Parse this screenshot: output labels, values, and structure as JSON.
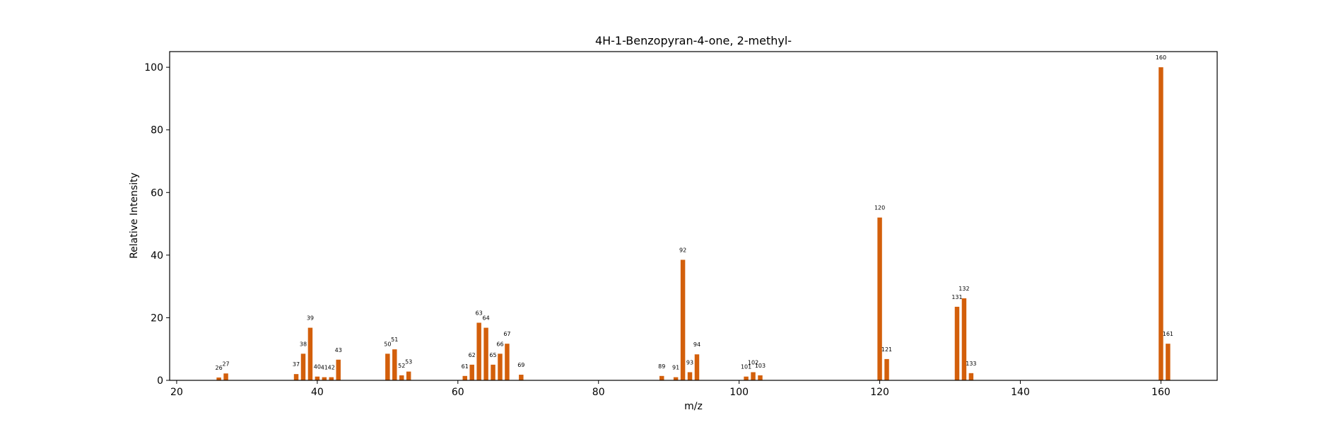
{
  "chart_data": {
    "type": "bar",
    "title": "4H-1-Benzopyran-4-one, 2-methyl-",
    "xlabel": "m/z",
    "ylabel": "Relative Intensity",
    "xlim": [
      19,
      168
    ],
    "ylim": [
      0,
      105
    ],
    "xticks": [
      20,
      40,
      60,
      80,
      100,
      120,
      140,
      160
    ],
    "yticks": [
      0,
      20,
      40,
      60,
      80,
      100
    ],
    "grid": false,
    "bar_color": "#d35f0b",
    "x": [
      26,
      27,
      37,
      38,
      39,
      40,
      41,
      42,
      43,
      50,
      51,
      52,
      53,
      61,
      62,
      63,
      64,
      65,
      66,
      67,
      69,
      89,
      91,
      92,
      93,
      94,
      101,
      102,
      103,
      120,
      121,
      131,
      132,
      133,
      160,
      161
    ],
    "values": [
      0.9,
      2.2,
      2.0,
      8.5,
      16.8,
      1.2,
      1.0,
      1.0,
      6.6,
      8.5,
      9.9,
      1.6,
      2.8,
      1.4,
      5.0,
      18.4,
      16.8,
      5.0,
      8.5,
      11.7,
      1.8,
      1.4,
      1.0,
      38.5,
      2.6,
      8.3,
      1.2,
      2.6,
      1.6,
      52.0,
      6.8,
      23.5,
      26.2,
      2.3,
      100.0,
      11.7
    ],
    "labels": [
      "26",
      "27",
      "37",
      "38",
      "39",
      "40",
      "41",
      "42",
      "43",
      "50",
      "51",
      "52",
      "53",
      "61",
      "62",
      "63",
      "64",
      "65",
      "66",
      "67",
      "69",
      "89",
      "91",
      "92",
      "93",
      "94",
      "101",
      "102",
      "103",
      "120",
      "121",
      "131",
      "132",
      "133",
      "160",
      "161"
    ]
  }
}
